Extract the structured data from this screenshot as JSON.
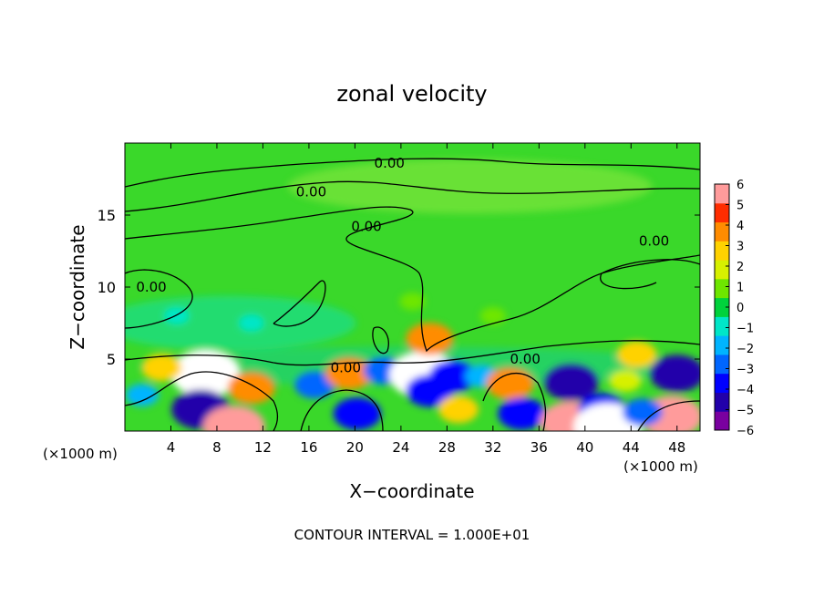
{
  "chart_data": {
    "type": "heatmap",
    "title": "zonal velocity",
    "xlabel": "X−coordinate",
    "ylabel": "Z−coordinate",
    "x_unit_left": "(×1000 m)",
    "x_unit_right": "(×1000 m)",
    "footer": "CONTOUR INTERVAL = 1.000E+01",
    "xlim": [
      0,
      50
    ],
    "ylim": [
      0,
      20
    ],
    "x_ticks": [
      4,
      8,
      12,
      16,
      20,
      24,
      28,
      32,
      36,
      40,
      44,
      48
    ],
    "x_tick_labels": [
      "4",
      "8",
      "12",
      "16",
      "20",
      "24",
      "28",
      "32",
      "36",
      "40",
      "44",
      "48"
    ],
    "y_ticks": [
      5,
      10,
      15
    ],
    "y_tick_labels": [
      "5",
      "10",
      "15"
    ],
    "colorbar": {
      "min": -6,
      "max": 6,
      "ticks": [
        6,
        5,
        4,
        3,
        2,
        1,
        0,
        -1,
        -2,
        -3,
        -4,
        -5,
        -6
      ],
      "tick_labels": [
        "6",
        "5",
        "4",
        "3",
        "2",
        "1",
        "0",
        "−1",
        "−2",
        "−3",
        "−4",
        "−5",
        "−6"
      ],
      "colors": [
        "#7a00a0",
        "#2200aa",
        "#0000ff",
        "#0066ff",
        "#00b4ff",
        "#00e6c8",
        "#00d23c",
        "#6ee600",
        "#d7f000",
        "#ffd200",
        "#ff8c00",
        "#ff2d00",
        "#ff9b9b"
      ]
    },
    "contour_labels": [
      {
        "text": "0.00",
        "x": 23.0,
        "y": 18.6
      },
      {
        "text": "0.00",
        "x": 16.2,
        "y": 16.6
      },
      {
        "text": "0.00",
        "x": 21.0,
        "y": 14.2
      },
      {
        "text": "0.00",
        "x": 46.0,
        "y": 13.2
      },
      {
        "text": "0.00",
        "x": 2.3,
        "y": 10.0
      },
      {
        "text": "0.00",
        "x": 19.2,
        "y": 4.4
      },
      {
        "text": "0.00",
        "x": 34.8,
        "y": 5.0
      }
    ],
    "features": [
      {
        "x": 7.0,
        "y": 4.0,
        "value": 7
      },
      {
        "x": 6.6,
        "y": 1.5,
        "value": -5.5
      },
      {
        "x": 9.5,
        "y": 0.3,
        "value": 6
      },
      {
        "x": 11.0,
        "y": 3.0,
        "value": 4
      },
      {
        "x": 3.2,
        "y": 4.4,
        "value": 3
      },
      {
        "x": 1.5,
        "y": 2.5,
        "value": -2
      },
      {
        "x": 16.5,
        "y": 3.2,
        "value": -3
      },
      {
        "x": 19.5,
        "y": 4.0,
        "value": 4
      },
      {
        "x": 20.2,
        "y": 1.2,
        "value": -4
      },
      {
        "x": 22.5,
        "y": 4.2,
        "value": -3
      },
      {
        "x": 26.0,
        "y": 3.9,
        "value": 7
      },
      {
        "x": 26.5,
        "y": 2.8,
        "value": -4
      },
      {
        "x": 28.5,
        "y": 3.8,
        "value": -4
      },
      {
        "x": 29.0,
        "y": 1.5,
        "value": 3
      },
      {
        "x": 26.5,
        "y": 6.4,
        "value": 4
      },
      {
        "x": 31.0,
        "y": 3.8,
        "value": -2
      },
      {
        "x": 33.5,
        "y": 3.3,
        "value": 4
      },
      {
        "x": 34.5,
        "y": 1.2,
        "value": -4
      },
      {
        "x": 38.8,
        "y": 3.4,
        "value": -5
      },
      {
        "x": 38.8,
        "y": 0.6,
        "value": 6
      },
      {
        "x": 41.5,
        "y": 1.5,
        "value": -4
      },
      {
        "x": 42.0,
        "y": 0.3,
        "value": 7
      },
      {
        "x": 43.5,
        "y": 3.5,
        "value": 2
      },
      {
        "x": 48.0,
        "y": 4.0,
        "value": -5
      },
      {
        "x": 47.5,
        "y": 1.0,
        "value": 6
      },
      {
        "x": 45.0,
        "y": 1.3,
        "value": -3
      },
      {
        "x": 44.5,
        "y": 5.3,
        "value": 3
      },
      {
        "x": 25.0,
        "y": 9.0,
        "value": 1
      },
      {
        "x": 32.0,
        "y": 8.0,
        "value": 1
      },
      {
        "x": 4.5,
        "y": 8.0,
        "value": -1
      },
      {
        "x": 11.0,
        "y": 7.5,
        "value": -1
      }
    ]
  }
}
